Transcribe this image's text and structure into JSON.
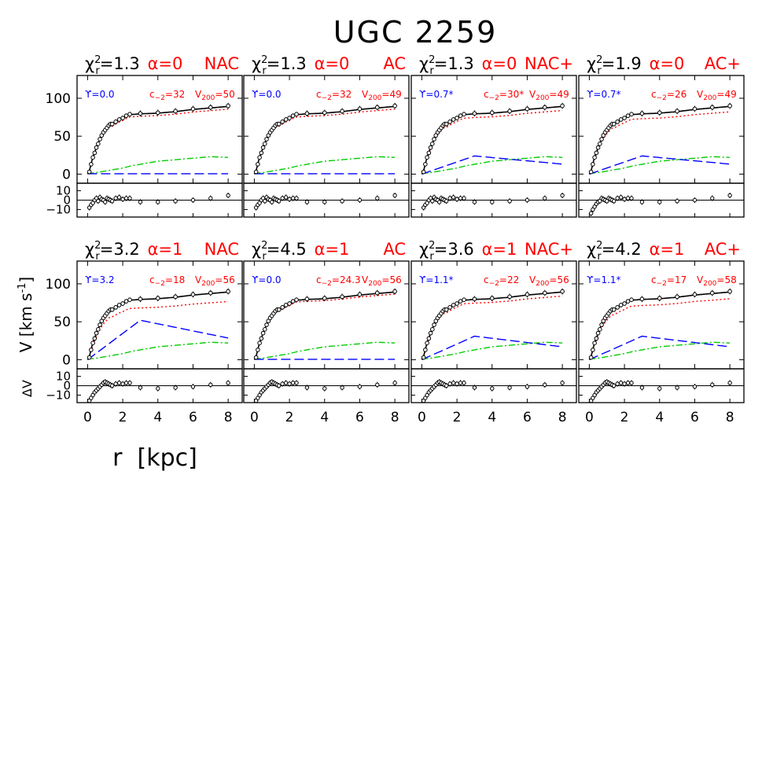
{
  "figure": {
    "title": "UGC 2259",
    "y_axis_label": "V [km s",
    "y_axis_exp": "-1",
    "y_axis_close": "]",
    "residual_label": "ΔV",
    "x_axis_label": "r  [kpc]"
  },
  "colors": {
    "data": "#000000",
    "total_fit": "#000000",
    "halo": "#ff0000",
    "stellar_disk": "#0000ff",
    "gas": "#00cc00",
    "param_red": "#ff0000",
    "param_blue": "#0000ff"
  },
  "chart_data": {
    "type": "line",
    "xlim": [
      -0.6,
      8.8
    ],
    "ylim": [
      -12,
      130
    ],
    "residual_ylim": [
      -18,
      18
    ],
    "x_ticks": [
      0,
      2,
      4,
      6,
      8
    ],
    "y_ticks": [
      0,
      50,
      100
    ],
    "residual_ticks": [
      10,
      0,
      -10
    ],
    "observed": {
      "r": [
        0.1,
        0.2,
        0.3,
        0.4,
        0.5,
        0.6,
        0.7,
        0.8,
        0.9,
        1.0,
        1.1,
        1.2,
        1.3,
        1.4,
        1.6,
        1.8,
        2.0,
        2.2,
        2.4,
        3.0,
        4.0,
        5.0,
        6.0,
        7.0,
        8.0
      ],
      "v": [
        3,
        13,
        22,
        28,
        35,
        40,
        46,
        51,
        55,
        58,
        61,
        64,
        66,
        66,
        69,
        72,
        74,
        77,
        79,
        80,
        81,
        83,
        86,
        88,
        90
      ]
    },
    "gas": {
      "r": [
        0,
        0.5,
        1,
        1.5,
        2,
        2.5,
        3,
        3.5,
        4,
        5,
        6,
        7,
        8
      ],
      "v": [
        1,
        2,
        4,
        6,
        8,
        11,
        13,
        15,
        17,
        19,
        21,
        23,
        22
      ]
    },
    "panels": [
      {
        "chi2": "=1.3",
        "alpha": "α=0",
        "model": "NAC",
        "ups": "ϒ=0.0",
        "c2": "c",
        "c2_val": "=32",
        "v200": "V",
        "v200_val": "=50",
        "disk_peak": 0,
        "halo_frac": 0.96,
        "resid": "r0"
      },
      {
        "chi2": "=1.3",
        "alpha": "α=0",
        "model": "AC",
        "ups": "ϒ=0.0",
        "c2": "c",
        "c2_val": "=32",
        "v200": "V",
        "v200_val": "=49",
        "disk_peak": 0,
        "halo_frac": 0.96,
        "resid": "r0"
      },
      {
        "chi2": "=1.3",
        "alpha": "α=0",
        "model": "NAC+",
        "ups": "ϒ=0.7*",
        "c2": "c",
        "c2_val": "=30*",
        "v200": "V",
        "v200_val": "=49",
        "disk_peak": 24,
        "halo_frac": 0.94,
        "resid": "r0"
      },
      {
        "chi2": "=1.9",
        "alpha": "α=0",
        "model": "AC+",
        "ups": "ϒ=0.7*",
        "c2": "c",
        "c2_val": "=26",
        "v200": "V",
        "v200_val": "=49",
        "disk_peak": 24,
        "halo_frac": 0.92,
        "resid": "r1"
      },
      {
        "chi2": "=3.2",
        "alpha": "α=1",
        "model": "NAC",
        "ups": "ϒ=3.2",
        "c2": "c",
        "c2_val": "=18",
        "v200": "V",
        "v200_val": "=56",
        "disk_peak": 52,
        "halo_frac": 0.86,
        "resid": "r2"
      },
      {
        "chi2": "=4.5",
        "alpha": "α=1",
        "model": "AC",
        "ups": "ϒ=0.0",
        "c2": "c",
        "c2_val": "=24.3",
        "v200": "V",
        "v200_val": "=56",
        "disk_peak": 0,
        "halo_frac": 0.97,
        "resid": "r2"
      },
      {
        "chi2": "=3.6",
        "alpha": "α=1",
        "model": "NAC+",
        "ups": "ϒ=1.1*",
        "c2": "c",
        "c2_val": "=22",
        "v200": "V",
        "v200_val": "=56",
        "disk_peak": 31,
        "halo_frac": 0.94,
        "resid": "r2"
      },
      {
        "chi2": "=4.2",
        "alpha": "α=1",
        "model": "AC+",
        "ups": "ϒ=1.1*",
        "c2": "c",
        "c2_val": "=17",
        "v200": "V",
        "v200_val": "=58",
        "disk_peak": 31,
        "halo_frac": 0.9,
        "resid": "r2"
      }
    ],
    "residuals": {
      "r0": [
        -8,
        -5,
        -3,
        0,
        2,
        -1,
        3,
        1,
        0,
        -2,
        2,
        1,
        0,
        -1,
        2,
        3,
        1,
        2,
        2,
        -2,
        -2,
        -1,
        0,
        2,
        5
      ],
      "r1": [
        -14,
        -10,
        -7,
        -4,
        -2,
        -1,
        2,
        1,
        0,
        -1,
        2,
        1,
        0,
        -1,
        2,
        3,
        1,
        2,
        2,
        -2,
        -2,
        -1,
        0,
        2,
        5
      ],
      "r2": [
        -16,
        -13,
        -10,
        -7,
        -5,
        -3,
        -1,
        1,
        3,
        4,
        3,
        2,
        1,
        0,
        2,
        3,
        2,
        3,
        3,
        -2,
        -3,
        -2,
        -1,
        1,
        3
      ]
    }
  },
  "labels": {
    "chi_symbol": "χ",
    "chi_sup": "2",
    "chi_sub": "r",
    "c2_sub": "−2",
    "v200_sub": "200"
  }
}
